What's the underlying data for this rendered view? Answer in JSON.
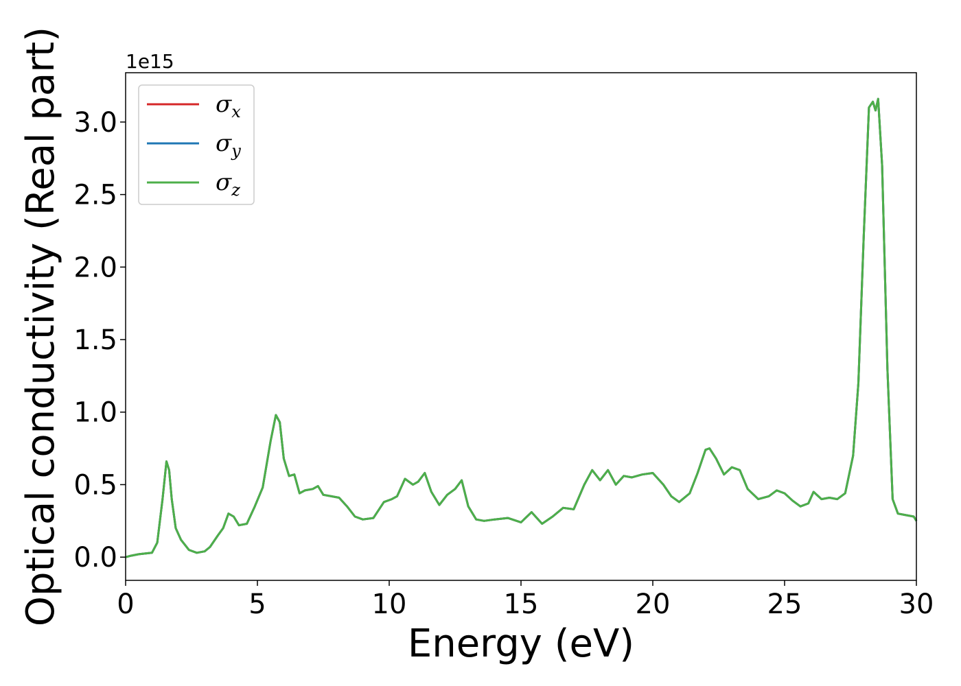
{
  "chart_data": {
    "type": "line",
    "xlabel": "Energy (eV)",
    "ylabel": "Optical conductivity (Real part)",
    "y_offset_label": "1e15",
    "xlim": [
      0,
      30
    ],
    "ylim": [
      -0.16,
      3.34
    ],
    "x_ticks": [
      0,
      5,
      10,
      15,
      20,
      25,
      30
    ],
    "x_tick_labels": [
      "0",
      "5",
      "10",
      "15",
      "20",
      "25",
      "30"
    ],
    "y_ticks": [
      0.0,
      0.5,
      1.0,
      1.5,
      2.0,
      2.5,
      3.0
    ],
    "y_tick_labels": [
      "0.0",
      "0.5",
      "1.0",
      "1.5",
      "2.0",
      "2.5",
      "3.0"
    ],
    "grid": false,
    "legend_position": "upper-left",
    "colors": {
      "sigma_x": "#d62728",
      "sigma_y": "#1f77b4",
      "sigma_z": "#4daf4a"
    },
    "series": [
      {
        "name": "σx",
        "symbol": "σ",
        "sub": "x",
        "color": "#d62728",
        "ref": "shared"
      },
      {
        "name": "σy",
        "symbol": "σ",
        "sub": "y",
        "color": "#1f77b4",
        "ref": "shared"
      },
      {
        "name": "σz",
        "symbol": "σ",
        "sub": "z",
        "color": "#4daf4a",
        "ref": "shared"
      }
    ],
    "shared": {
      "x": [
        0,
        0.2,
        0.5,
        1.0,
        1.2,
        1.4,
        1.55,
        1.65,
        1.75,
        1.9,
        2.1,
        2.4,
        2.7,
        3.0,
        3.2,
        3.5,
        3.7,
        3.9,
        4.1,
        4.3,
        4.6,
        4.9,
        5.2,
        5.5,
        5.7,
        5.85,
        6.0,
        6.2,
        6.4,
        6.6,
        6.8,
        7.1,
        7.3,
        7.5,
        7.8,
        8.1,
        8.4,
        8.7,
        9.0,
        9.4,
        9.8,
        10.1,
        10.3,
        10.6,
        10.9,
        11.1,
        11.35,
        11.6,
        11.9,
        12.2,
        12.5,
        12.75,
        13.0,
        13.3,
        13.6,
        14.0,
        14.5,
        15.0,
        15.4,
        15.8,
        16.2,
        16.6,
        17.0,
        17.4,
        17.7,
        18.0,
        18.3,
        18.6,
        18.9,
        19.2,
        19.6,
        20.0,
        20.4,
        20.7,
        21.0,
        21.4,
        21.7,
        22.0,
        22.15,
        22.4,
        22.7,
        23.0,
        23.3,
        23.6,
        24.0,
        24.4,
        24.7,
        25.0,
        25.3,
        25.6,
        25.9,
        26.1,
        26.4,
        26.7,
        27.0,
        27.3,
        27.6,
        27.8,
        28.0,
        28.2,
        28.35,
        28.45,
        28.55,
        28.7,
        28.9,
        29.1,
        29.3,
        29.6,
        29.9,
        30.0
      ],
      "y": [
        0.0,
        0.01,
        0.02,
        0.03,
        0.1,
        0.4,
        0.66,
        0.6,
        0.4,
        0.2,
        0.12,
        0.05,
        0.03,
        0.04,
        0.07,
        0.15,
        0.2,
        0.3,
        0.28,
        0.22,
        0.23,
        0.35,
        0.48,
        0.8,
        0.98,
        0.93,
        0.68,
        0.56,
        0.57,
        0.44,
        0.46,
        0.47,
        0.49,
        0.43,
        0.42,
        0.41,
        0.35,
        0.28,
        0.26,
        0.27,
        0.38,
        0.4,
        0.42,
        0.54,
        0.5,
        0.52,
        0.58,
        0.45,
        0.36,
        0.43,
        0.47,
        0.53,
        0.35,
        0.26,
        0.25,
        0.26,
        0.27,
        0.24,
        0.31,
        0.23,
        0.28,
        0.34,
        0.33,
        0.5,
        0.6,
        0.53,
        0.6,
        0.5,
        0.56,
        0.55,
        0.57,
        0.58,
        0.5,
        0.42,
        0.38,
        0.44,
        0.58,
        0.74,
        0.75,
        0.68,
        0.57,
        0.62,
        0.6,
        0.47,
        0.4,
        0.42,
        0.46,
        0.44,
        0.39,
        0.35,
        0.37,
        0.45,
        0.4,
        0.41,
        0.4,
        0.44,
        0.7,
        1.2,
        2.2,
        3.1,
        3.14,
        3.08,
        3.16,
        2.7,
        1.3,
        0.4,
        0.3,
        0.29,
        0.28,
        0.25
      ]
    }
  }
}
